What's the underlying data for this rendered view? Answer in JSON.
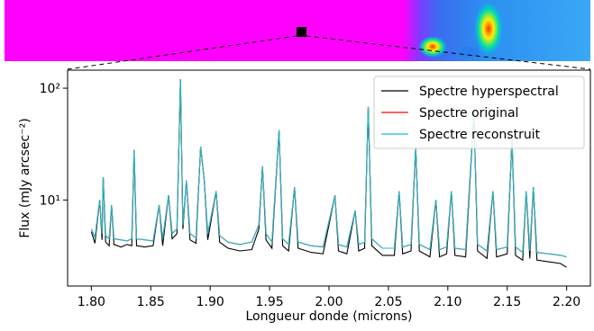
{
  "chart_data": {
    "type": "line",
    "xlabel": "Longueur donde (microns)",
    "ylabel": "Flux (mJy arcsec⁻²)",
    "xlim": [
      1.78,
      2.22
    ],
    "ylim": [
      1.7,
      145
    ],
    "log_y": true,
    "legend": "upper right",
    "xticks": [
      {
        "value": 1.8,
        "label": "1.80"
      },
      1.85,
      {
        "value": 1.9,
        "label": "1.90"
      },
      1.95,
      {
        "value": 2.0,
        "label": "2.00"
      },
      2.05,
      {
        "value": 2.1,
        "label": "2.10"
      },
      2.15,
      {
        "value": 2.2,
        "label": "2.20"
      }
    ],
    "yticks": [
      {
        "value": 10,
        "label": "10¹"
      },
      {
        "value": 100,
        "label": "10²"
      }
    ],
    "x": [
      1.8,
      1.803,
      1.807,
      1.809,
      1.81,
      1.812,
      1.815,
      1.817,
      1.819,
      1.825,
      1.83,
      1.834,
      1.836,
      1.838,
      1.845,
      1.852,
      1.857,
      1.86,
      1.865,
      1.868,
      1.872,
      1.875,
      1.877,
      1.88,
      1.883,
      1.888,
      1.892,
      1.895,
      1.898,
      1.905,
      1.908,
      1.915,
      1.925,
      1.935,
      1.941,
      1.944,
      1.947,
      1.952,
      1.958,
      1.961,
      1.966,
      1.971,
      1.974,
      1.985,
      1.995,
      2.005,
      2.008,
      2.015,
      2.022,
      2.025,
      2.03,
      2.033,
      2.036,
      2.045,
      2.055,
      2.059,
      2.062,
      2.069,
      2.073,
      2.076,
      2.085,
      2.09,
      2.093,
      2.099,
      2.103,
      2.106,
      2.115,
      2.122,
      2.125,
      2.133,
      2.138,
      2.141,
      2.15,
      2.154,
      2.157,
      2.163,
      2.166,
      2.169,
      2.172,
      2.175,
      2.185,
      2.195,
      2.2
    ],
    "series": [
      {
        "name": "Spectre hyperspectral",
        "color": "#000000",
        "values": [
          5.2,
          4.1,
          10,
          4.4,
          16,
          4.2,
          3.9,
          9,
          4.0,
          3.8,
          4.0,
          3.9,
          28,
          3.9,
          3.8,
          3.9,
          9,
          3.9,
          11,
          4.5,
          5.0,
          120,
          5.5,
          15,
          4.4,
          4.1,
          30,
          15,
          4.4,
          12,
          4.2,
          3.7,
          3.5,
          3.6,
          5.5,
          20,
          4.4,
          3.7,
          42,
          3.9,
          3.5,
          13,
          3.7,
          3.4,
          3.3,
          11,
          3.5,
          3.3,
          8,
          3.5,
          3.7,
          68,
          3.9,
          3.2,
          3.2,
          12,
          3.3,
          3.5,
          30,
          3.5,
          3.1,
          10,
          3.1,
          3.3,
          12,
          3.2,
          3.1,
          60,
          3.5,
          3.0,
          12,
          3.1,
          3.3,
          35,
          3.2,
          2.9,
          12,
          3.0,
          13,
          2.9,
          2.8,
          2.7,
          2.5
        ]
      },
      {
        "name": "Spectre original",
        "color": "#ff0000",
        "values": [
          5.5,
          4.6,
          10,
          5,
          16,
          4.8,
          4.5,
          9,
          4.5,
          4.4,
          4.3,
          4.5,
          28,
          4.5,
          4.4,
          4.3,
          9,
          4.5,
          11,
          5,
          5.5,
          120,
          6,
          15,
          5,
          4.6,
          30,
          15,
          5,
          12,
          4.8,
          4.2,
          4.0,
          4.2,
          6,
          20,
          5,
          4.2,
          42,
          4.5,
          4.0,
          13,
          4.2,
          3.9,
          3.8,
          11,
          4,
          3.8,
          8,
          4,
          4.2,
          68,
          4.5,
          3.7,
          3.7,
          12,
          3.8,
          4,
          30,
          4,
          3.6,
          10,
          3.6,
          3.8,
          12,
          3.7,
          3.6,
          60,
          4,
          3.5,
          12,
          3.6,
          3.8,
          35,
          3.8,
          3.4,
          12,
          3.5,
          13,
          3.4,
          3.3,
          3.2,
          3.1
        ]
      },
      {
        "name": "Spectre reconstruit",
        "color": "#17becf",
        "values": [
          5.5,
          4.6,
          10,
          5,
          16,
          4.8,
          4.5,
          9,
          4.5,
          4.4,
          4.3,
          4.5,
          28,
          4.5,
          4.4,
          4.3,
          9,
          4.5,
          11,
          5,
          5.5,
          120,
          6,
          15,
          5,
          4.6,
          30,
          15,
          5,
          12,
          4.8,
          4.2,
          4.0,
          4.2,
          6,
          20,
          5,
          4.2,
          42,
          4.5,
          4.0,
          13,
          4.2,
          3.9,
          3.8,
          11,
          4,
          3.8,
          8,
          4,
          4.2,
          68,
          4.5,
          3.7,
          3.7,
          12,
          3.8,
          4,
          30,
          4,
          3.6,
          10,
          3.6,
          3.8,
          12,
          3.7,
          3.6,
          60,
          4,
          3.5,
          12,
          3.6,
          3.8,
          35,
          3.8,
          3.4,
          12,
          3.5,
          13,
          3.4,
          3.3,
          3.2,
          3.1
        ]
      }
    ]
  }
}
